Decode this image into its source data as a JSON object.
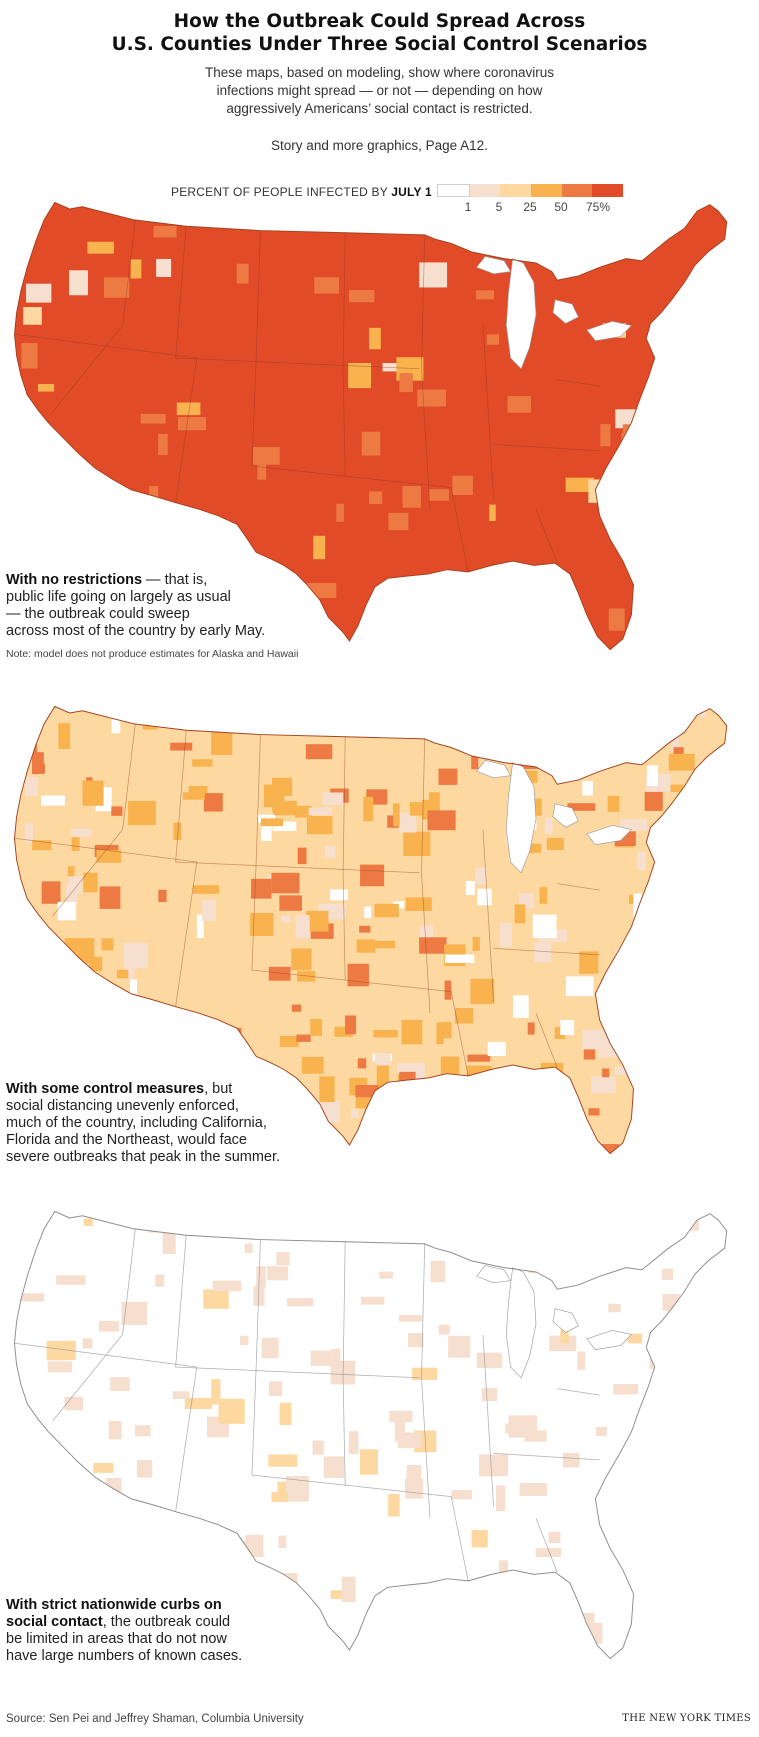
{
  "header": {
    "title_line1": "How the Outbreak Could Spread Across",
    "title_line2": "U.S. Counties Under Three Social Control Scenarios",
    "subtitle_line1": "These maps, based on modeling, show where coronavirus",
    "subtitle_line2": "infections might spread — or not — depending on how",
    "subtitle_line3": "aggressively Americans’ social contact is restricted.",
    "story_link": "Story and more graphics, Page A12."
  },
  "legend": {
    "title_prefix": "PERCENT OF PEOPLE INFECTED BY ",
    "title_bold": "JULY 1",
    "ticks": [
      "1",
      "5",
      "25",
      "50",
      "75%"
    ],
    "colors": [
      "#ffffff",
      "#f6dfcf",
      "#fdd8a0",
      "#f8b24e",
      "#ee7a43",
      "#e14b28"
    ]
  },
  "maps": [
    {
      "caption_bold": "With no restrictions",
      "caption_rest_1": " — that is,",
      "caption_rest_2": "public life going on largely as usual",
      "caption_rest_3": "— the outbreak could sweep",
      "caption_rest_4": "across most of the country by early May.",
      "note": "Note: model does not produce estimates for Alaska and Hawaii",
      "base_color": "#e14b28",
      "patch_colors": [
        "#ee7a43",
        "#f8b24e",
        "#fdd8a0",
        "#f6dfcf"
      ]
    },
    {
      "caption_bold": "With some control measures",
      "caption_rest_1": ", but",
      "caption_rest_2": "social distancing unevenly enforced,",
      "caption_rest_3": "much of the country, including California,",
      "caption_rest_4": "Florida and the Northeast, would face",
      "caption_rest_5": "severe outbreaks that peak in the summer.",
      "base_color": "#fdd8a0",
      "patch_colors": [
        "#f8b24e",
        "#ee7a43",
        "#ffffff",
        "#f6dfcf"
      ]
    },
    {
      "caption_bold_1": "With strict nationwide curbs on",
      "caption_bold_2": "social contact",
      "caption_rest_1": ", the outbreak could",
      "caption_rest_2": "be limited in areas that do not now",
      "caption_rest_3": "have large numbers of known cases.",
      "base_color": "#ffffff",
      "patch_colors": [
        "#f6dfcf",
        "#fdd8a0"
      ]
    }
  ],
  "footer": {
    "source": "Source: Sen Pei and Jeffrey Shaman, Columbia University",
    "credit": "THE NEW YORK TIMES"
  }
}
